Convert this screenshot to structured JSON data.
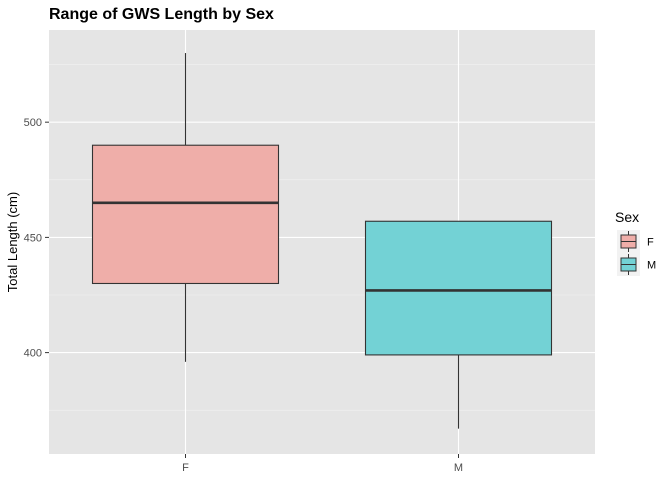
{
  "chart_data": {
    "type": "boxplot",
    "title": "Range of GWS Length by Sex",
    "xlabel": "",
    "ylabel": "Total Length (cm)",
    "categories": [
      "F",
      "M"
    ],
    "boxes": [
      {
        "category": "F",
        "min": 396,
        "q1": 430,
        "median": 465,
        "q3": 490,
        "max": 530,
        "color": "#F8766D"
      },
      {
        "category": "M",
        "min": 367,
        "q1": 399,
        "median": 427,
        "q3": 457,
        "max": 457,
        "color": "#00BFC4"
      }
    ],
    "yticks": [
      400,
      450,
      500
    ],
    "ylim": [
      356,
      540
    ],
    "grid": true,
    "legend": {
      "title": "Sex",
      "placement": "right",
      "items": [
        {
          "label": "F",
          "color": "#F8766D"
        },
        {
          "label": "M",
          "color": "#00BFC4"
        }
      ]
    }
  }
}
